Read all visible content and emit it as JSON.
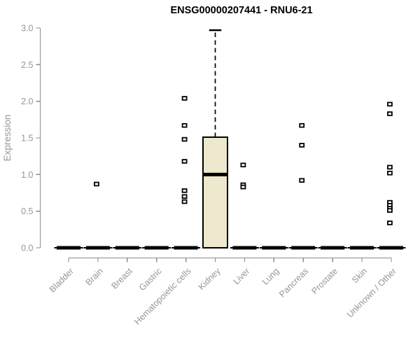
{
  "chart_data": {
    "type": "boxplot",
    "title": "ENSG00000207441 - RNU6-21",
    "ylabel": "Expression",
    "xlabel": "",
    "ylim": [
      0.0,
      3.0
    ],
    "yticks": [
      "0.0",
      "0.5",
      "1.0",
      "1.5",
      "2.0",
      "2.5",
      "3.0"
    ],
    "ytick_values": [
      0.0,
      0.5,
      1.0,
      1.5,
      2.0,
      2.5,
      3.0
    ],
    "grid": "off",
    "legend": "none",
    "categories": [
      "Bladder",
      "Brain",
      "Breast",
      "Gastric",
      "Hematopoietic cells",
      "Kidney",
      "Liver",
      "Lung",
      "Pancreas",
      "Prostate",
      "Skin",
      "Unknown / Other"
    ],
    "boxes": [
      {
        "category": "Bladder",
        "whisker_low": 0,
        "q1": 0,
        "median": 0,
        "q3": 0,
        "whisker_high": 0,
        "outliers": []
      },
      {
        "category": "Brain",
        "whisker_low": 0,
        "q1": 0,
        "median": 0,
        "q3": 0,
        "whisker_high": 0,
        "outliers": [
          0.87
        ]
      },
      {
        "category": "Breast",
        "whisker_low": 0,
        "q1": 0,
        "median": 0,
        "q3": 0,
        "whisker_high": 0,
        "outliers": []
      },
      {
        "category": "Gastric",
        "whisker_low": 0,
        "q1": 0,
        "median": 0,
        "q3": 0,
        "whisker_high": 0,
        "outliers": []
      },
      {
        "category": "Hematopoietic cells",
        "whisker_low": 0,
        "q1": 0,
        "median": 0,
        "q3": 0,
        "whisker_high": 0,
        "outliers": [
          2.04,
          1.67,
          1.48,
          1.18,
          0.78,
          0.7,
          0.63
        ]
      },
      {
        "category": "Kidney",
        "whisker_low": 0,
        "q1": 0,
        "median": 1.0,
        "q3": 1.51,
        "whisker_high": 2.97,
        "outliers": []
      },
      {
        "category": "Liver",
        "whisker_low": 0,
        "q1": 0,
        "median": 0,
        "q3": 0,
        "whisker_high": 0,
        "outliers": [
          1.13,
          0.86,
          0.83
        ]
      },
      {
        "category": "Lung",
        "whisker_low": 0,
        "q1": 0,
        "median": 0,
        "q3": 0,
        "whisker_high": 0,
        "outliers": []
      },
      {
        "category": "Pancreas",
        "whisker_low": 0,
        "q1": 0,
        "median": 0,
        "q3": 0,
        "whisker_high": 0,
        "outliers": [
          1.67,
          1.4,
          0.92
        ]
      },
      {
        "category": "Prostate",
        "whisker_low": 0,
        "q1": 0,
        "median": 0,
        "q3": 0,
        "whisker_high": 0,
        "outliers": []
      },
      {
        "category": "Skin",
        "whisker_low": 0,
        "q1": 0,
        "median": 0,
        "q3": 0,
        "whisker_high": 0,
        "outliers": []
      },
      {
        "category": "Unknown / Other",
        "whisker_low": 0,
        "q1": 0,
        "median": 0,
        "q3": 0,
        "whisker_high": 0,
        "outliers": [
          1.96,
          1.83,
          1.1,
          1.02,
          0.62,
          0.58,
          0.54,
          0.51,
          0.34
        ]
      }
    ],
    "colors": {
      "box_fill": "#EDE8CE",
      "box_border": "#000000",
      "median": "#000000",
      "whisker": "#000000",
      "outlier_stroke": "#000000",
      "outlier_fill": "#FFFFFF",
      "axis": "#8C8C8C",
      "tick_label": "#969696",
      "title": "#000000",
      "background": "#FFFFFF"
    }
  }
}
